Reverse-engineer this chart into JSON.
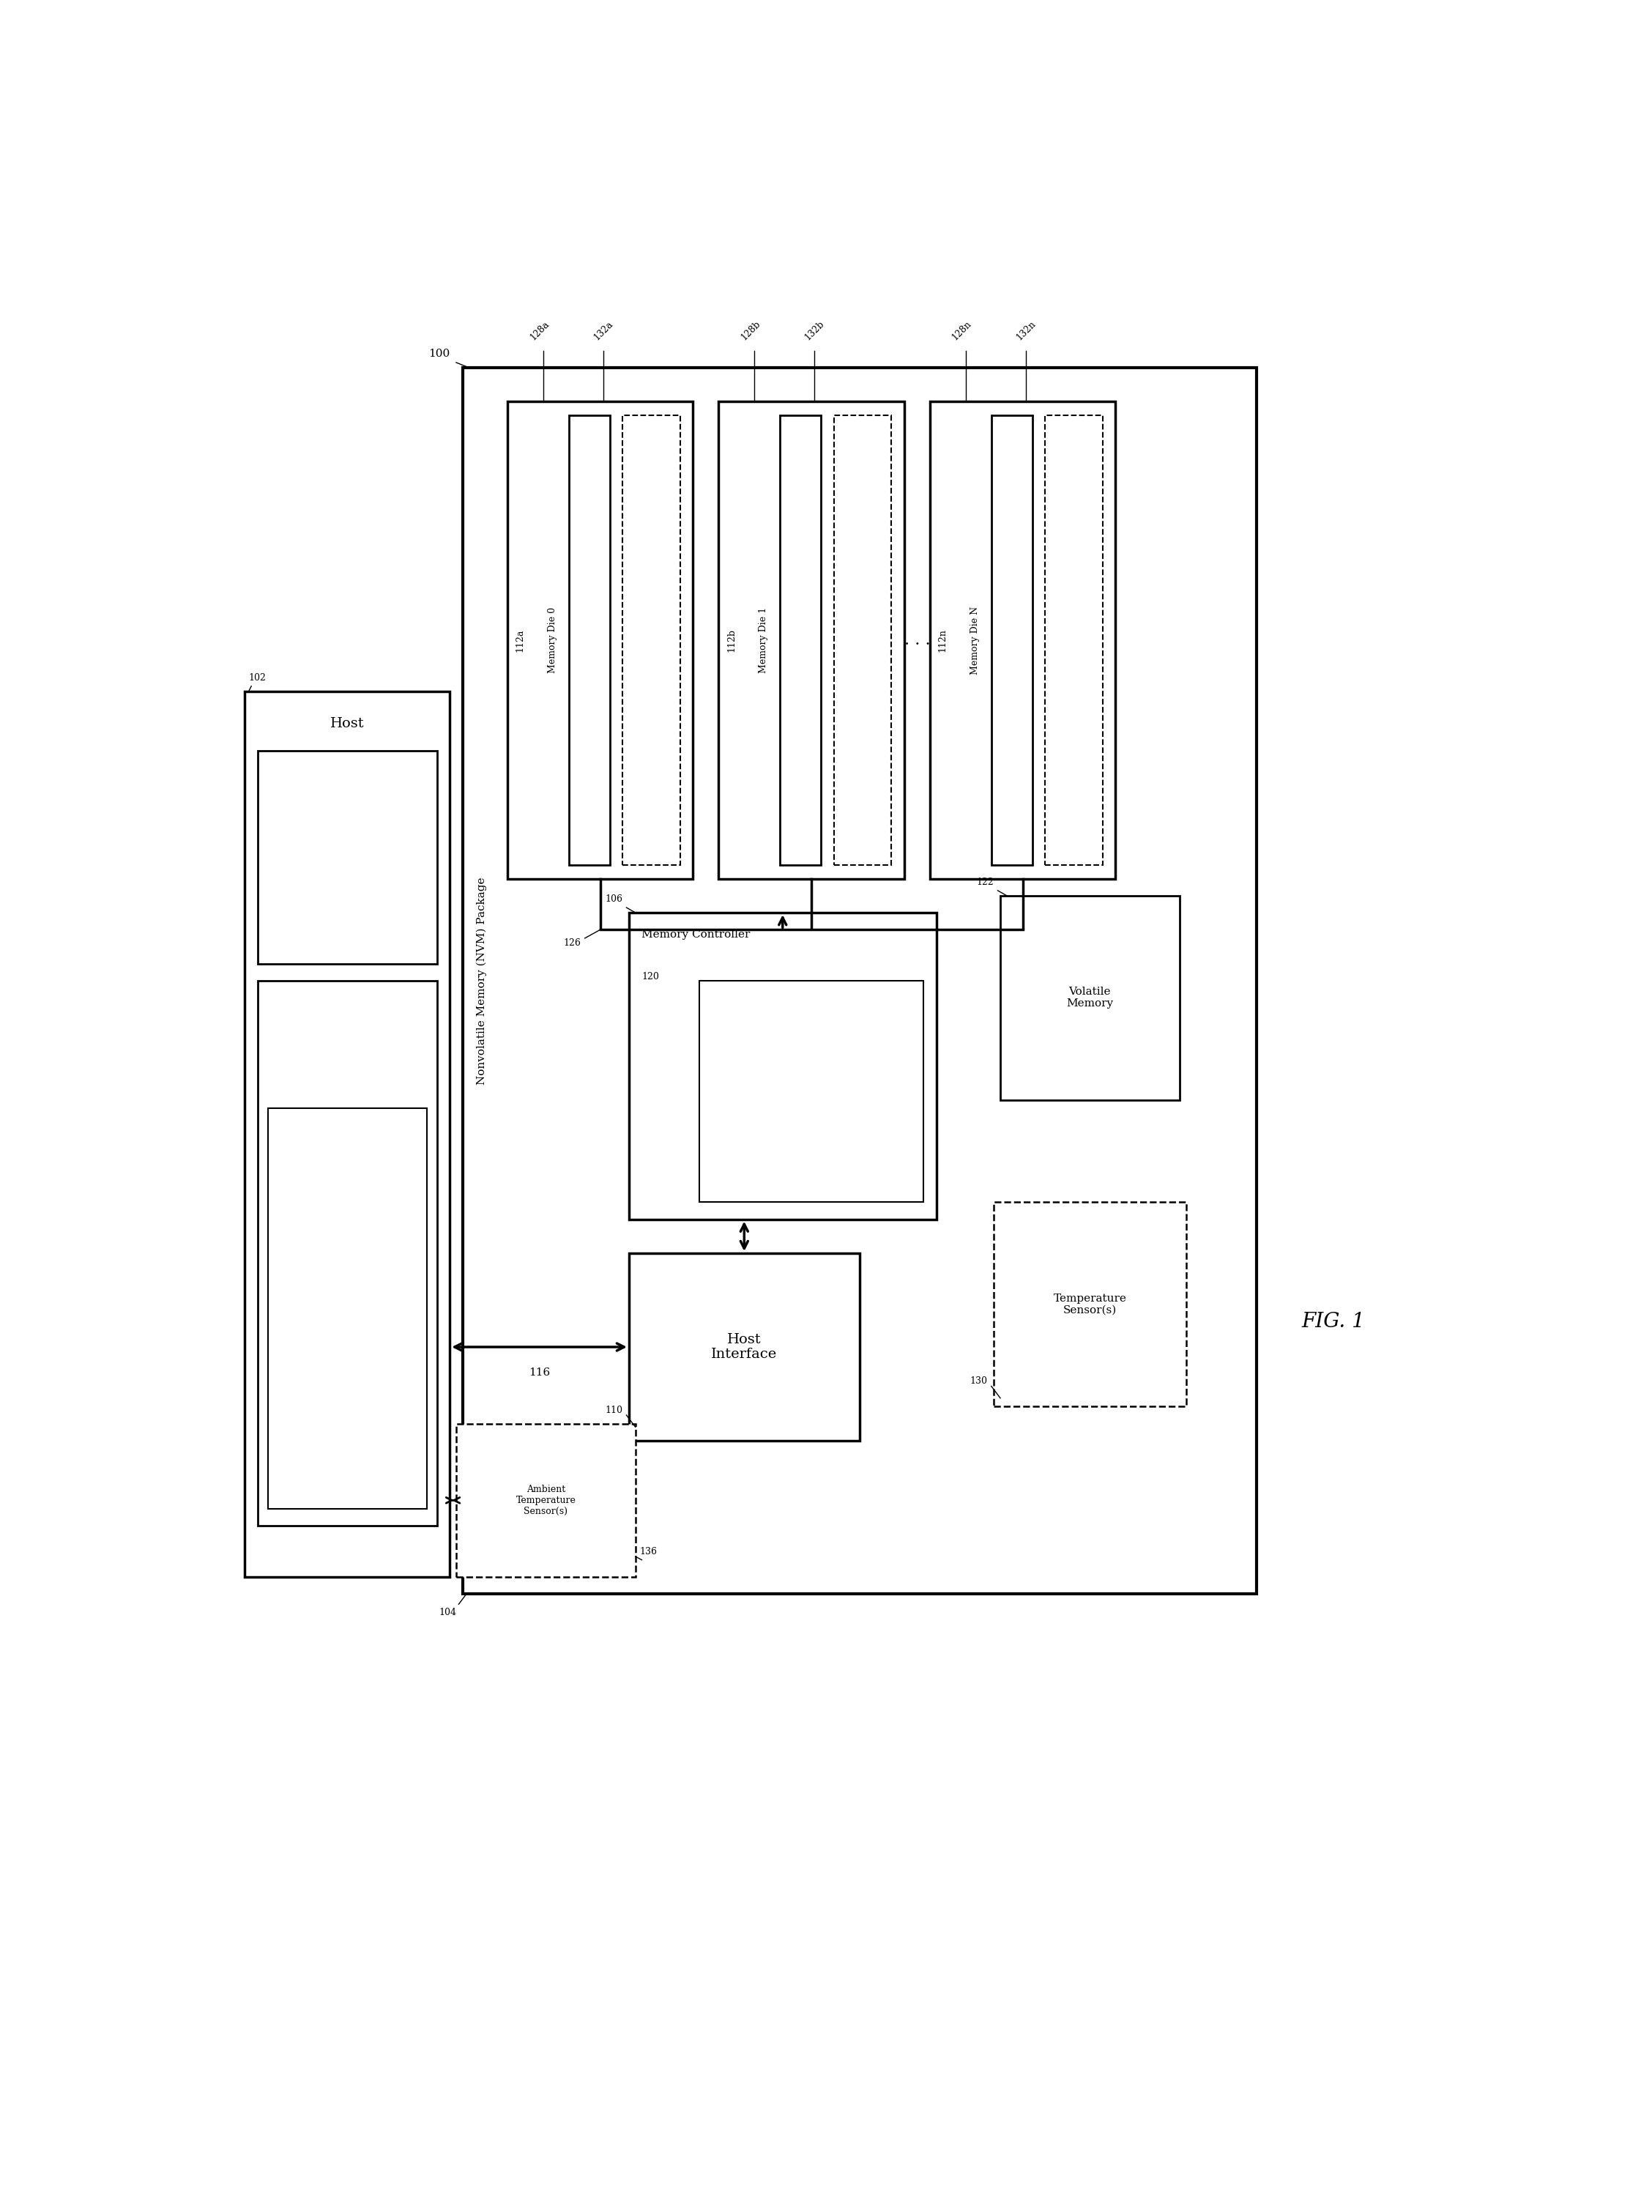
{
  "fig_width": 22.56,
  "fig_height": 30.2,
  "bg_color": "#ffffff",
  "title": "FIG. 1",
  "label_100": "100",
  "nvm_package_label": "Nonvolatile Memory (NVM) Package",
  "bus_label": "126",
  "arrow_116": "116",
  "label_104": "104"
}
